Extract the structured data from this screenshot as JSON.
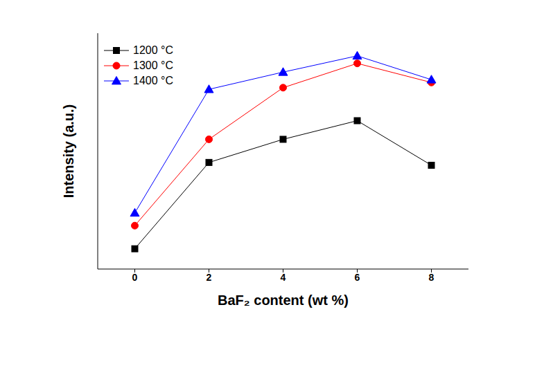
{
  "chart_data": {
    "type": "line",
    "xlabel": "BaF₂ content (wt %)",
    "ylabel": "Intensity (a.u.)",
    "x": [
      0,
      2,
      4,
      6,
      8
    ],
    "xlim": [
      -1,
      9
    ],
    "xticks": [
      0,
      2,
      4,
      6,
      8
    ],
    "ylim": [
      0,
      100
    ],
    "yticks": [],
    "tick_labels": "x",
    "grid": false,
    "legend": "upper left",
    "series": [
      {
        "name": "1200 °C",
        "color": "#000000",
        "marker": "square",
        "line_style": "solid",
        "values": [
          8.6,
          45.2,
          55.0,
          62.9,
          44.0
        ]
      },
      {
        "name": "1300 °C",
        "color": "#ff0000",
        "marker": "circle",
        "line_style": "solid",
        "values": [
          18.4,
          55.0,
          76.9,
          87.2,
          79.1
        ]
      },
      {
        "name": "1400 °C",
        "color": "#0000ff",
        "marker": "triangle",
        "line_style": "solid",
        "values": [
          23.8,
          76.2,
          83.5,
          90.4,
          80.3
        ]
      }
    ]
  }
}
